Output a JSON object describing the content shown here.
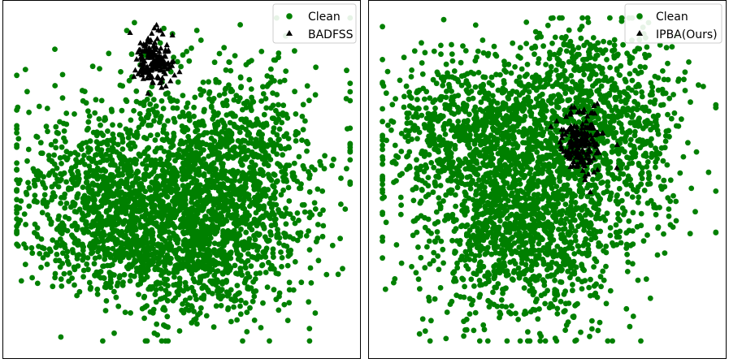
{
  "colors": {
    "clean": "#008000",
    "trigger": "#000000",
    "frame": "#000000",
    "legend_border": "#cccccc"
  },
  "chart_data": [
    {
      "type": "scatter",
      "title": "",
      "xlabel": "",
      "ylabel": "",
      "axes_ticks": false,
      "grid": false,
      "legend_placement": "top-right",
      "legend": [
        "Clean",
        "BADFSS"
      ],
      "series": [
        {
          "name": "Clean",
          "marker": "circle",
          "color": "#008000",
          "approx_count": 3000,
          "clusters": [
            {
              "center": [
                0.3,
                0.57
              ],
              "spread": [
                0.13,
                0.11
              ],
              "weight": 0.28
            },
            {
              "center": [
                0.63,
                0.5
              ],
              "spread": [
                0.12,
                0.15
              ],
              "weight": 0.3
            },
            {
              "center": [
                0.5,
                0.69
              ],
              "spread": [
                0.15,
                0.1
              ],
              "weight": 0.27
            },
            {
              "center": [
                0.47,
                0.43
              ],
              "spread": [
                0.22,
                0.14
              ],
              "weight": 0.15
            }
          ],
          "outliers": [
            [
              0.06,
              0.68
            ],
            [
              0.96,
              0.47
            ],
            [
              0.79,
              0.1
            ],
            [
              0.77,
              0.16
            ],
            [
              0.68,
              0.18
            ],
            [
              0.47,
              0.2
            ],
            [
              0.33,
              0.2
            ]
          ]
        },
        {
          "name": "BADFSS",
          "marker": "triangle",
          "color": "#000000",
          "approx_count": 170,
          "clusters": [
            {
              "center": [
                0.42,
                0.17
              ],
              "spread": [
                0.025,
                0.035
              ],
              "weight": 1.0
            }
          ],
          "outliers": [
            [
              0.43,
              0.07
            ],
            [
              0.48,
              0.21
            ]
          ]
        }
      ]
    },
    {
      "type": "scatter",
      "title": "",
      "xlabel": "",
      "ylabel": "",
      "axes_ticks": false,
      "grid": false,
      "legend_placement": "top-right",
      "legend": [
        "Clean",
        "IPBA(Ours)"
      ],
      "series": [
        {
          "name": "Clean",
          "marker": "circle",
          "color": "#008000",
          "approx_count": 3000,
          "clusters": [
            {
              "center": [
                0.3,
                0.37
              ],
              "spread": [
                0.13,
                0.11
              ],
              "weight": 0.28
            },
            {
              "center": [
                0.63,
                0.33
              ],
              "spread": [
                0.12,
                0.14
              ],
              "weight": 0.28
            },
            {
              "center": [
                0.43,
                0.67
              ],
              "spread": [
                0.14,
                0.13
              ],
              "weight": 0.3
            },
            {
              "center": [
                0.48,
                0.5
              ],
              "spread": [
                0.2,
                0.14
              ],
              "weight": 0.14
            }
          ],
          "outliers": [
            [
              0.95,
              0.48
            ],
            [
              0.1,
              0.16
            ],
            [
              0.3,
              0.07
            ],
            [
              0.55,
              0.92
            ],
            [
              0.73,
              0.91
            ],
            [
              0.16,
              0.46
            ]
          ]
        },
        {
          "name": "IPBA(Ours)",
          "marker": "triangle",
          "color": "#000000",
          "approx_count": 190,
          "clusters": [
            {
              "center": [
                0.592,
                0.4
              ],
              "spread": [
                0.03,
                0.04
              ],
              "weight": 1.0
            }
          ],
          "outliers": [
            [
              0.59,
              0.31
            ],
            [
              0.63,
              0.48
            ]
          ]
        }
      ]
    }
  ]
}
